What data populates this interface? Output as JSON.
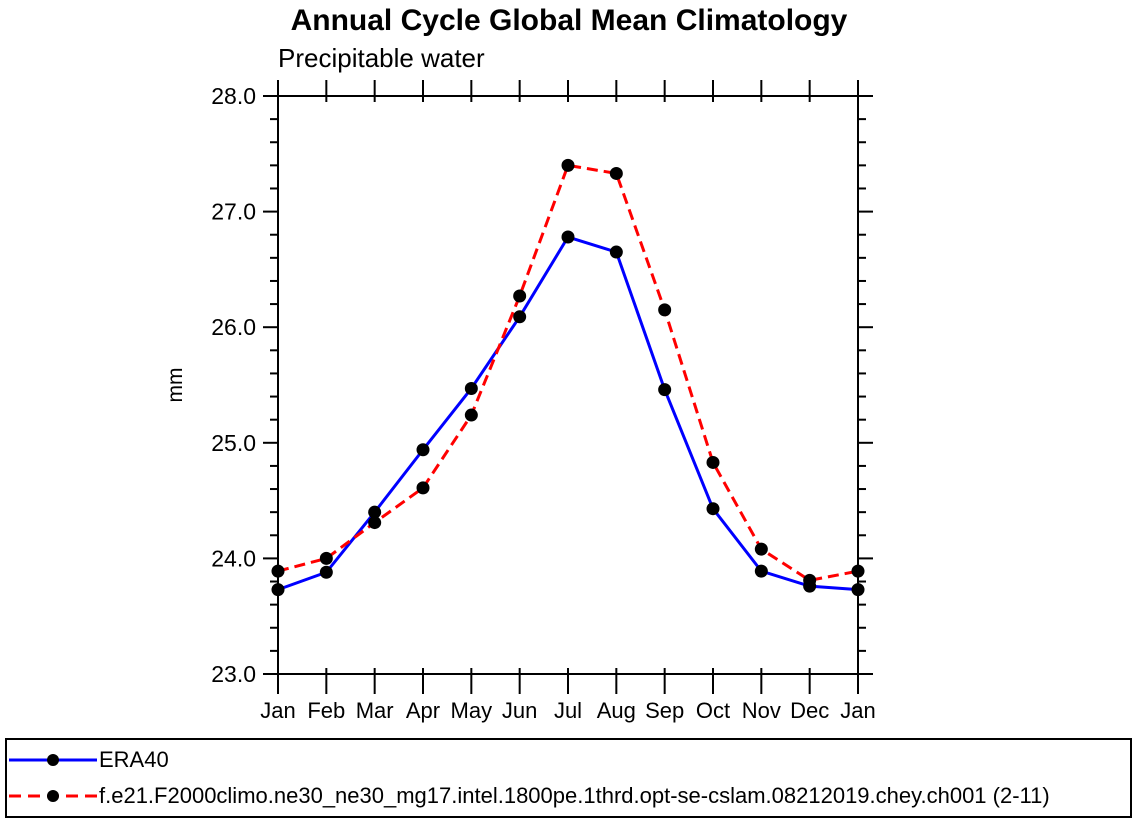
{
  "page": {
    "background": "#ffffff"
  },
  "chart_data": {
    "type": "line",
    "title": "Annual Cycle Global Mean Climatology",
    "subtitle": "Precipitable water",
    "xlabel": "",
    "ylabel": "mm",
    "categories": [
      "Jan",
      "Feb",
      "Mar",
      "Apr",
      "May",
      "Jun",
      "Jul",
      "Aug",
      "Sep",
      "Oct",
      "Nov",
      "Dec",
      "Jan"
    ],
    "ylim": [
      23.0,
      28.0
    ],
    "ytick_major_step": 1.0,
    "ytick_minor_step": 0.2,
    "ytick_labels": [
      "23.0",
      "24.0",
      "25.0",
      "26.0",
      "27.0",
      "28.0"
    ],
    "grid": false,
    "legend_position": "bottom-outside-box",
    "axis_color": "#000000",
    "marker_shape": "filled-circle",
    "marker_color": "#000000",
    "series": [
      {
        "name": "ERA40",
        "color": "#0000ff",
        "style": "solid",
        "values": [
          23.73,
          23.88,
          24.4,
          24.94,
          25.47,
          26.09,
          26.78,
          26.65,
          25.46,
          24.43,
          23.89,
          23.76,
          23.73
        ]
      },
      {
        "name": "f.e21.F2000climo.ne30_ne30_mg17.intel.1800pe.1thrd.opt-se-cslam.08212019.chey.ch001 (2-11)",
        "color": "#ff0000",
        "style": "dashed",
        "values": [
          23.89,
          24.0,
          24.31,
          24.61,
          25.24,
          26.27,
          27.4,
          27.33,
          26.15,
          24.83,
          24.08,
          23.81,
          23.89
        ]
      }
    ]
  }
}
